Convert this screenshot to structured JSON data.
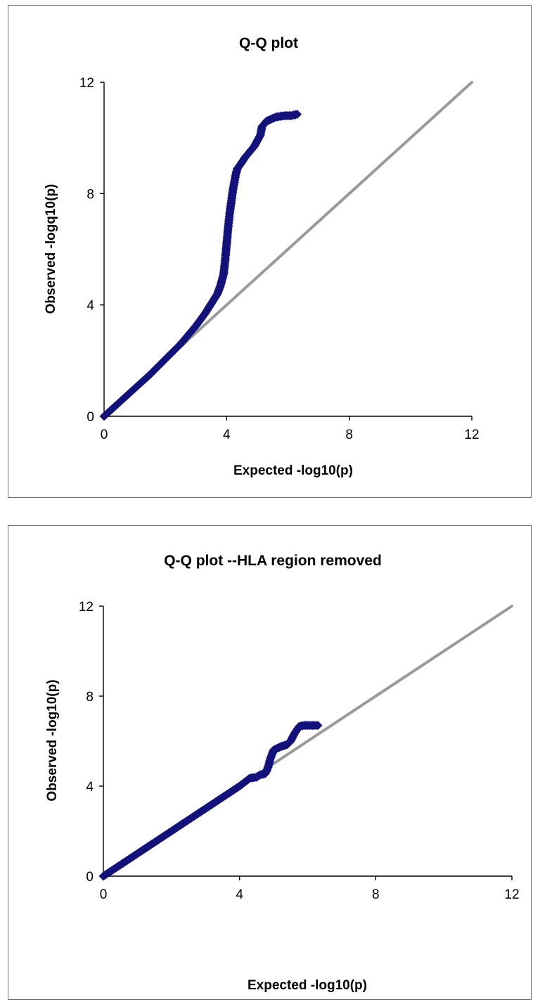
{
  "colors": {
    "observed_series": "#12127a",
    "expected_line": "#9a9a9a",
    "axis": "#000000",
    "background": "#ffffff"
  },
  "chart_data": [
    {
      "type": "scatter",
      "title": "Q-Q plot",
      "xlabel": "Expected -log10(p)",
      "ylabel": "Observed -logq10(p)",
      "xlim": [
        0,
        12
      ],
      "ylim": [
        0,
        12
      ],
      "xticks": [
        0,
        4,
        8,
        12
      ],
      "yticks": [
        0,
        4,
        8,
        12
      ],
      "tick_labels": {
        "x": [
          "0",
          "4",
          "8",
          "12"
        ],
        "y": [
          "0",
          "4",
          "8",
          "12"
        ]
      },
      "grid": false,
      "legend": "none",
      "reference_line": {
        "x": [
          0,
          12
        ],
        "y": [
          0,
          12
        ]
      },
      "series": [
        {
          "marker": "diamond",
          "x": [
            0,
            0.5,
            1.0,
            1.5,
            2.0,
            2.5,
            3.0,
            3.3,
            3.5,
            3.7,
            3.8,
            3.9,
            3.95,
            4.0,
            4.05,
            4.1,
            4.15,
            4.2,
            4.25,
            4.3,
            4.35,
            4.45,
            4.6,
            4.75,
            4.9,
            5.0,
            5.1,
            5.15,
            5.3,
            5.6,
            5.9,
            6.1,
            6.3
          ],
          "y": [
            0,
            0.5,
            1.0,
            1.5,
            2.05,
            2.6,
            3.25,
            3.7,
            4.05,
            4.4,
            4.7,
            5.1,
            5.6,
            6.2,
            6.8,
            7.3,
            7.7,
            8.1,
            8.4,
            8.7,
            8.9,
            9.05,
            9.3,
            9.5,
            9.7,
            9.9,
            10.1,
            10.4,
            10.6,
            10.75,
            10.8,
            10.8,
            10.85
          ]
        }
      ]
    },
    {
      "type": "scatter",
      "title": "Q-Q plot --HLA region removed",
      "xlabel": "Expected -log10(p)",
      "ylabel": "Observed -log10(p)",
      "xlim": [
        0,
        12
      ],
      "ylim": [
        0,
        12
      ],
      "xticks": [
        0,
        4,
        8,
        12
      ],
      "yticks": [
        0,
        4,
        8,
        12
      ],
      "tick_labels": {
        "x": [
          "0",
          "4",
          "8",
          "12"
        ],
        "y": [
          "0",
          "4",
          "8",
          "12"
        ]
      },
      "grid": false,
      "legend": "none",
      "reference_line": {
        "x": [
          0,
          12
        ],
        "y": [
          0,
          12
        ]
      },
      "series": [
        {
          "marker": "diamond",
          "x": [
            0,
            0.5,
            1.0,
            1.5,
            2.0,
            2.5,
            3.0,
            3.5,
            4.0,
            4.3,
            4.5,
            4.6,
            4.75,
            4.8,
            4.85,
            4.9,
            5.0,
            5.2,
            5.4,
            5.5,
            5.6,
            5.75,
            5.9,
            6.1,
            6.3
          ],
          "y": [
            0,
            0.5,
            1.0,
            1.5,
            2.0,
            2.5,
            3.0,
            3.5,
            4.0,
            4.35,
            4.4,
            4.5,
            4.55,
            4.7,
            4.9,
            5.2,
            5.6,
            5.75,
            5.85,
            6.0,
            6.3,
            6.65,
            6.7,
            6.7,
            6.7
          ]
        }
      ]
    }
  ]
}
